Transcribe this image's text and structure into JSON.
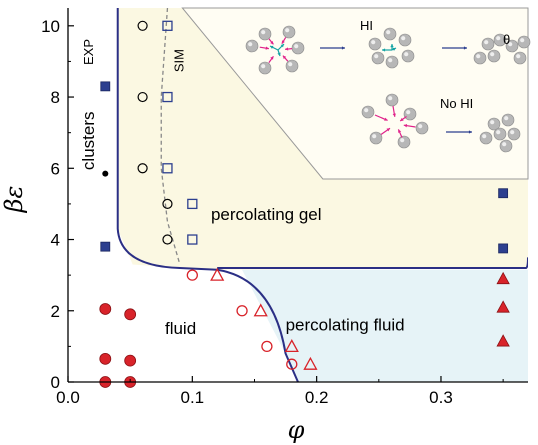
{
  "chart_data": {
    "type": "scatter",
    "xlabel": "φ",
    "ylabel": "βε",
    "xlim": [
      0.0,
      0.37
    ],
    "ylim": [
      0.0,
      10.5
    ],
    "x_ticks": [
      "0.0",
      "0.1",
      "0.2",
      "0.3"
    ],
    "x_tick_values": [
      0.0,
      0.1,
      0.2,
      0.3
    ],
    "y_ticks": [
      "0",
      "2",
      "4",
      "6",
      "8",
      "10"
    ],
    "y_tick_values": [
      0,
      2,
      4,
      6,
      8,
      10
    ],
    "region_labels": {
      "gel": "percolating gel",
      "fluid": "fluid",
      "perc_fluid": "percolating fluid",
      "clusters": "clusters",
      "exp": "EXP",
      "sim": "SIM"
    },
    "inset": {
      "hi": "HI",
      "no_hi": "No HI",
      "theta": "θ"
    },
    "colors": {
      "gel_region": "#fbf8e2",
      "perc_fluid_region": "#e6f3f7",
      "boundary_line": "#2b2f85",
      "red": "#d8232a",
      "blue": "#2c3f8f",
      "sim_line": "#888888",
      "inset_border": "#999999"
    },
    "series": [
      {
        "marker": "filled-circle-red",
        "points": [
          [
            0.03,
            2.05
          ],
          [
            0.05,
            1.9
          ],
          [
            0.03,
            0.65
          ],
          [
            0.05,
            0.6
          ],
          [
            0.03,
            0.0
          ],
          [
            0.05,
            0.0
          ]
        ]
      },
      {
        "marker": "open-circle-red",
        "points": [
          [
            0.1,
            3.0
          ],
          [
            0.14,
            2.0
          ],
          [
            0.16,
            1.0
          ],
          [
            0.18,
            0.5
          ]
        ]
      },
      {
        "marker": "open-triangle-red",
        "points": [
          [
            0.12,
            3.0
          ],
          [
            0.155,
            2.0
          ],
          [
            0.18,
            1.0
          ],
          [
            0.195,
            0.5
          ]
        ]
      },
      {
        "marker": "filled-triangle-red",
        "points": [
          [
            0.35,
            2.9
          ],
          [
            0.35,
            2.1
          ],
          [
            0.35,
            1.15
          ]
        ]
      },
      {
        "marker": "open-circle-black",
        "points": [
          [
            0.06,
            10.0
          ],
          [
            0.06,
            8.0
          ],
          [
            0.06,
            6.0
          ],
          [
            0.08,
            5.0
          ],
          [
            0.08,
            4.0
          ]
        ]
      },
      {
        "marker": "filled-circle-black",
        "points": [
          [
            0.03,
            5.85
          ]
        ]
      },
      {
        "marker": "open-square-blue",
        "points": [
          [
            0.08,
            10.0
          ],
          [
            0.08,
            8.0
          ],
          [
            0.08,
            6.0
          ],
          [
            0.1,
            5.0
          ],
          [
            0.1,
            4.0
          ]
        ]
      },
      {
        "marker": "filled-square-blue",
        "points": [
          [
            0.03,
            8.3
          ],
          [
            0.03,
            3.8
          ],
          [
            0.35,
            5.3
          ],
          [
            0.35,
            3.75
          ]
        ]
      }
    ],
    "boundary_line": [
      [
        0.04,
        10.5
      ],
      [
        0.04,
        4.3
      ],
      [
        0.052,
        3.3
      ],
      [
        0.09,
        3.2
      ],
      [
        0.12,
        3.15
      ],
      [
        0.14,
        2.7
      ],
      [
        0.16,
        1.8
      ],
      [
        0.175,
        0.8
      ],
      [
        0.185,
        0.0
      ]
    ],
    "gel_top_boundary": [
      [
        0.205,
        3.2
      ],
      [
        0.37,
        3.2
      ]
    ],
    "sim_curve": [
      [
        0.08,
        10.5
      ],
      [
        0.075,
        8.0
      ],
      [
        0.075,
        6.0
      ],
      [
        0.08,
        4.5
      ],
      [
        0.09,
        3.3
      ]
    ]
  }
}
